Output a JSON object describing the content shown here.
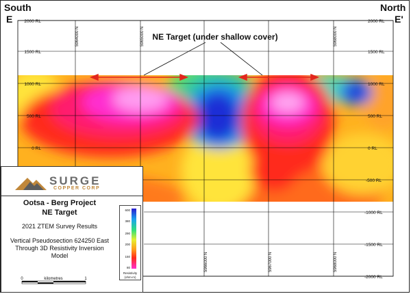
{
  "corners": {
    "south": "South",
    "e": "E",
    "north": "North",
    "e_prime": "E'"
  },
  "headline": "NE Target (under shallow cover)",
  "elevation_labels_left": [
    "2000 RL",
    "1500 RL",
    "1000 RL",
    "500 RL",
    "0 RL"
  ],
  "elevation_labels_right": [
    "2000 RL",
    "1500 RL",
    "1000 RL",
    "500 RL",
    "0 RL",
    "-500 RL",
    "-1000 RL",
    "-1500 RL",
    "-2000 RL"
  ],
  "northing_labels_top": [
    "5964000 N",
    "5965000 N",
    "5968000 N"
  ],
  "northing_labels_bottom": [
    "5966000 N",
    "5967000 N",
    "5968000 N"
  ],
  "logo": {
    "name": "SURGE",
    "tagline": "COPPER CORP"
  },
  "project": {
    "line1": "Ootsa - Berg Project",
    "line2": "NE Target",
    "line3": "2021 ZTEM Survey Results",
    "line4": "Vertical Pseudosection 624250 East",
    "line5": "Through 3D Resistivity Inversion",
    "line6": "Model"
  },
  "legend": {
    "values": [
      "600",
      "380",
      "290",
      "200",
      "150",
      "80"
    ],
    "title": "Resistivity",
    "unit": "(ohm-m)"
  },
  "scale": {
    "start": "0",
    "unit_label": "kilometres",
    "end": "1"
  },
  "colors": {
    "arrow": "#e2261d",
    "box_border": "#333333",
    "logo_grey": "#6b6b6b",
    "logo_gold": "#c0873a"
  }
}
